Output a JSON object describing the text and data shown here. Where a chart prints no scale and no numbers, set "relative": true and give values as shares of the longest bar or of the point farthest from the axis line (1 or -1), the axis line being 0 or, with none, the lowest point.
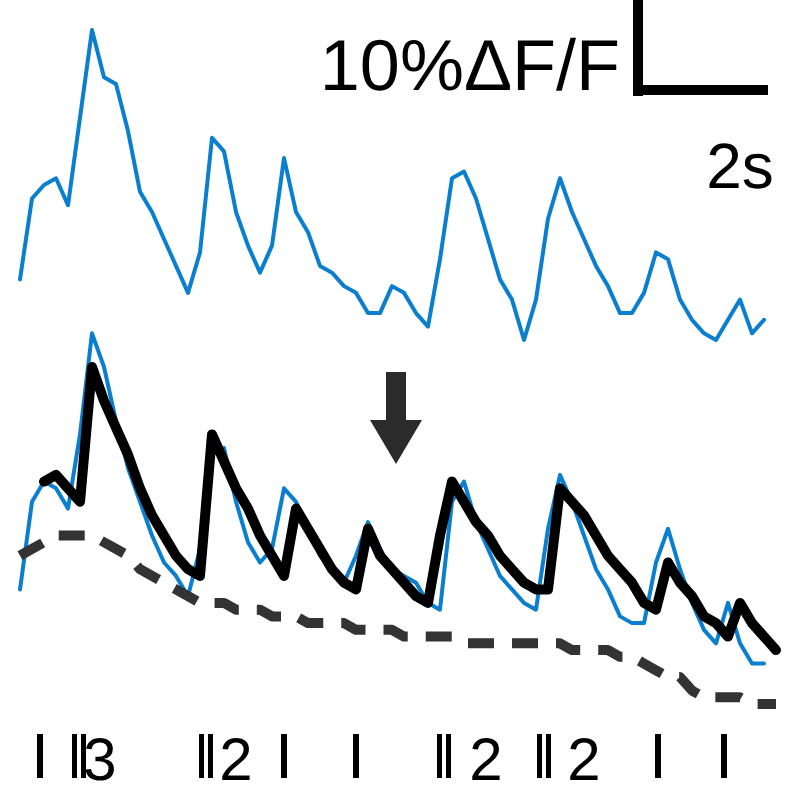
{
  "chart_data": {
    "type": "line",
    "relative": true,
    "categories": [
      null,
      null,
      null,
      null,
      null,
      null,
      null,
      null,
      null,
      null,
      null,
      null,
      null,
      null,
      null,
      null,
      null,
      null,
      null,
      null,
      null,
      null,
      null,
      null,
      null,
      null,
      null,
      null,
      null,
      null,
      null,
      null,
      null,
      null,
      null,
      null,
      null,
      null,
      null,
      null,
      null,
      null,
      null,
      null,
      null,
      null,
      null,
      null,
      null,
      null,
      null,
      null,
      null,
      null,
      null,
      null,
      null,
      null,
      null,
      null,
      null,
      null,
      null,
      null
    ],
    "annotations": [
      "10%ΔF/F",
      "2s",
      "3",
      "2",
      "2",
      "2"
    ],
    "series": [
      {
        "color": "#0a7fd0",
        "line_style": "solid",
        "values": [
          0.63,
          0.75,
          0.77,
          0.78,
          0.74,
          0.87,
          1,
          0.93,
          0.92,
          0.85,
          0.76,
          0.73,
          0.69,
          0.65,
          0.61,
          0.67,
          0.84,
          0.82,
          0.73,
          0.68,
          0.64,
          0.68,
          0.81,
          0.73,
          0.7,
          0.65,
          0.64,
          0.62,
          0.61,
          0.58,
          0.58,
          0.62,
          0.61,
          0.58,
          0.56,
          0.66,
          0.78,
          0.79,
          0.75,
          0.69,
          0.63,
          0.6,
          0.54,
          0.6,
          0.72,
          0.78,
          0.73,
          0.69,
          0.65,
          0.62,
          0.58,
          0.58,
          0.61,
          0.67,
          0.66,
          0.6,
          0.57,
          0.55,
          0.54,
          0.57,
          0.6,
          0.55,
          0.57,
          null
        ]
      },
      {
        "color": "#0a7fd0",
        "line_style": "solid",
        "values": [
          0.17,
          0.3,
          0.33,
          0.32,
          0.29,
          0.4,
          0.55,
          0.5,
          0.42,
          0.35,
          0.3,
          0.25,
          0.21,
          0.19,
          0.16,
          0.23,
          0.37,
          0.38,
          0.3,
          0.24,
          0.21,
          0.23,
          0.32,
          0.3,
          0.26,
          0.22,
          0.2,
          0.18,
          0.22,
          0.27,
          0.23,
          0.2,
          0.19,
          0.18,
          0.15,
          0.14,
          0.3,
          0.33,
          0.27,
          0.23,
          0.19,
          0.17,
          0.15,
          0.14,
          0.26,
          0.34,
          0.3,
          0.25,
          0.2,
          0.17,
          0.13,
          0.12,
          0.12,
          0.21,
          0.26,
          0.2,
          0.15,
          0.11,
          0.09,
          0.15,
          0.09,
          0.06,
          0.06,
          null
        ]
      },
      {
        "color": "#000000",
        "line_style": "solid",
        "values": [
          null,
          null,
          0.33,
          0.34,
          0.32,
          0.3,
          0.5,
          0.45,
          0.41,
          0.37,
          0.32,
          0.28,
          0.25,
          0.22,
          0.2,
          0.19,
          0.4,
          0.36,
          0.32,
          0.29,
          0.25,
          0.22,
          0.19,
          0.29,
          0.26,
          0.23,
          0.2,
          0.18,
          0.17,
          0.26,
          0.22,
          0.2,
          0.18,
          0.16,
          0.15,
          0.25,
          0.33,
          0.3,
          0.27,
          0.25,
          0.22,
          0.2,
          0.18,
          0.17,
          0.17,
          0.32,
          0.3,
          0.28,
          0.25,
          0.22,
          0.2,
          0.18,
          0.15,
          0.14,
          0.21,
          0.18,
          0.16,
          0.13,
          0.12,
          0.1,
          0.15,
          0.12,
          0.1,
          0.08
        ]
      },
      {
        "color": "#333333",
        "line_style": "dashed",
        "values": [
          0.22,
          0.23,
          0.24,
          0.25,
          0.25,
          0.25,
          0.25,
          0.24,
          0.23,
          0.22,
          0.2,
          0.19,
          0.18,
          0.17,
          0.16,
          0.15,
          0.15,
          0.15,
          0.14,
          0.14,
          0.14,
          0.13,
          0.13,
          0.13,
          0.12,
          0.12,
          0.12,
          0.12,
          0.11,
          0.11,
          0.11,
          0.11,
          0.1,
          0.1,
          0.1,
          0.1,
          0.1,
          0.09,
          0.09,
          0.09,
          0.09,
          0.09,
          0.09,
          0.09,
          0.09,
          0.09,
          0.08,
          0.08,
          0.08,
          0.08,
          0.07,
          0.07,
          0.06,
          0.05,
          0.04,
          0.04,
          0.02,
          0.01,
          0.01,
          0.01,
          0.01,
          0,
          0,
          0
        ]
      }
    ]
  }
}
